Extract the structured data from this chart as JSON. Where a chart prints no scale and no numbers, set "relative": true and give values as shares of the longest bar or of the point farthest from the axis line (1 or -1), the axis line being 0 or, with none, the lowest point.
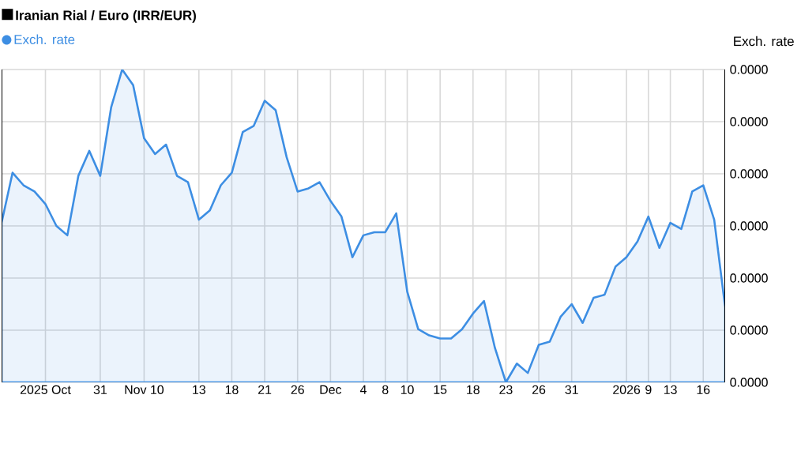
{
  "chart_data": {
    "type": "area",
    "title": "Iranian Rial / Euro (IRR/EUR)",
    "ylabel": "Exch. rate",
    "relative": true,
    "categories": [
      null,
      null,
      null,
      null,
      "2025 Oct",
      null,
      null,
      null,
      null,
      "31",
      null,
      null,
      null,
      "Nov 10",
      null,
      null,
      null,
      null,
      "13",
      null,
      null,
      "18",
      null,
      null,
      "21",
      null,
      null,
      "26",
      null,
      null,
      "Dec",
      null,
      null,
      "4",
      null,
      "8",
      null,
      "10",
      null,
      null,
      "15",
      null,
      null,
      "18",
      null,
      null,
      "23",
      null,
      null,
      "26",
      null,
      null,
      "31",
      null,
      null,
      null,
      null,
      "2026",
      null,
      "9",
      null,
      "13",
      null,
      null,
      "16",
      null,
      null
    ],
    "annotations": [
      "0.0000",
      "0.0000",
      "0.0000",
      "0.0000",
      "0.0000",
      "0.0000",
      "0.0000"
    ],
    "grid": true,
    "legend": "top left",
    "series": [
      {
        "name": "Exch. rate",
        "color": "#3d8ee3",
        "values": [
          0.51,
          0.67,
          0.63,
          0.61,
          0.57,
          0.5,
          0.47,
          0.66,
          0.74,
          0.66,
          0.88,
          1.0,
          0.95,
          0.78,
          0.73,
          0.76,
          0.66,
          0.64,
          0.52,
          0.55,
          0.63,
          0.67,
          0.8,
          0.82,
          0.9,
          0.87,
          0.72,
          0.61,
          0.62,
          0.64,
          0.58,
          0.53,
          0.4,
          0.47,
          0.48,
          0.48,
          0.54,
          0.29,
          0.17,
          0.15,
          0.14,
          0.14,
          0.17,
          0.22,
          0.26,
          0.11,
          0.0,
          0.06,
          0.03,
          0.12,
          0.13,
          0.21,
          0.25,
          0.19,
          0.27,
          0.28,
          0.37,
          0.4,
          0.45,
          0.53,
          0.43,
          0.51,
          0.49,
          0.61,
          0.63,
          0.52,
          0.24
        ]
      }
    ]
  }
}
